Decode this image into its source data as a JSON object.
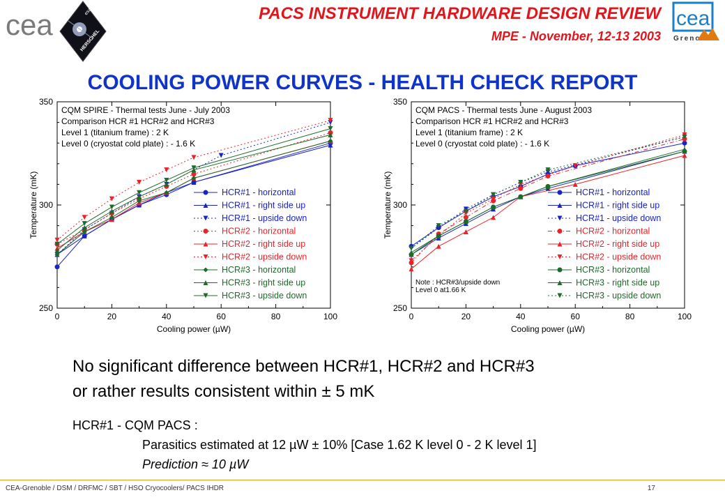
{
  "header": {
    "title": "PACS INSTRUMENT HARDWARE DESIGN REVIEW",
    "subtitle": "MPE - November, 12-13 2003",
    "logo_left_text": "cea",
    "herschel_text": "HERSCHEL",
    "esa_text": "esa",
    "logo_right_top": "cea",
    "logo_right_bottom": "Grenoble"
  },
  "page_title": "COOLING POWER CURVES - HEALTH CHECK REPORT",
  "conclusion": {
    "line1": "No significant difference between HCR#1, HCR#2 and HCR#3",
    "line2": "or rather results consistent within ± 5 mK"
  },
  "notes": {
    "heading": "HCR#1 - CQM PACS :",
    "parasitics": "Parasitics estimated at 12 µW ± 10% [Case 1.62 K level 0 - 2 K level 1]",
    "prediction": "Prediction ≈ 10 µW"
  },
  "footer": {
    "text": "CEA-Grenoble / DSM / DRFMC / SBT / HSO Cryocoolers/ PACS IHDR",
    "page": "17"
  },
  "colors": {
    "red_title": "#e0161d",
    "blue_title": "#1034c8",
    "hcr1": "#1a23c8",
    "hcr2": "#e8232a",
    "hcr3": "#1d6b2a"
  },
  "chart_data": [
    {
      "type": "line",
      "xlabel": "Cooling power (µW)",
      "ylabel": "Temperature (mK)",
      "xlim": [
        0,
        100
      ],
      "ylim": [
        250,
        350
      ],
      "xticks": [
        0,
        20,
        40,
        60,
        80,
        100
      ],
      "yticks": [
        250,
        300,
        350
      ],
      "annotation": [
        "CQM SPIRE - Thermal tests June - July 2003",
        "Comparison HCR #1 HCR#2 and HCR#3",
        "Level 1 (titanium frame) : 2 K",
        "Level 0 (cryostat cold plate) : - 1.6 K"
      ],
      "note": [],
      "legend_position": "bottom-right",
      "series": [
        {
          "name": "HCR#1 - horizontal",
          "color": "#1a23c8",
          "marker": "circle",
          "dash": "",
          "x": [
            0,
            10,
            20,
            30,
            40,
            50,
            100
          ],
          "y": [
            270,
            285,
            293,
            300,
            305,
            311,
            330
          ]
        },
        {
          "name": "HCR#1 - right side up",
          "color": "#1a23c8",
          "marker": "triangle-up",
          "dash": "",
          "x": [
            0,
            10,
            20,
            30,
            40,
            50,
            100
          ],
          "y": [
            276,
            285,
            293,
            300,
            306,
            311,
            329
          ]
        },
        {
          "name": "HCR#1 - upside down",
          "color": "#1a23c8",
          "marker": "triangle-down",
          "dash": "2,3",
          "x": [
            0,
            10,
            20,
            30,
            40,
            60,
            100
          ],
          "y": [
            276,
            288,
            296,
            304,
            310,
            324,
            340
          ]
        },
        {
          "name": "HCR#2 - horizontal",
          "color": "#e8232a",
          "marker": "circle",
          "dash": "2,3",
          "x": [
            0,
            10,
            20,
            30,
            40,
            50,
            100
          ],
          "y": [
            281,
            288,
            296,
            303,
            309,
            315,
            335
          ]
        },
        {
          "name": "HCR#2 - right side up",
          "color": "#e8232a",
          "marker": "triangle-up",
          "dash": "",
          "x": [
            0,
            10,
            20,
            30,
            40,
            50,
            100
          ],
          "y": [
            279,
            287,
            293,
            301,
            306,
            313,
            331
          ]
        },
        {
          "name": "HCR#2 - upside down",
          "color": "#e8232a",
          "marker": "triangle-down",
          "dash": "2,3",
          "x": [
            0,
            10,
            20,
            30,
            40,
            50,
            100
          ],
          "y": [
            283,
            294,
            303,
            311,
            317,
            323,
            341
          ]
        },
        {
          "name": "HCR#3 - horizontal",
          "color": "#1d6b2a",
          "marker": "diamond",
          "dash": "",
          "x": [
            0,
            10,
            20,
            30,
            40,
            50,
            100
          ],
          "y": [
            276,
            287,
            294,
            302,
            306,
            313,
            331
          ]
        },
        {
          "name": "HCR#3 - right side up",
          "color": "#1d6b2a",
          "marker": "triangle-up",
          "dash": "",
          "x": [
            0,
            10,
            20,
            30,
            40,
            50,
            100
          ],
          "y": [
            278,
            289,
            297,
            304,
            310,
            317,
            334
          ]
        },
        {
          "name": "HCR#3 - upside down",
          "color": "#1d6b2a",
          "marker": "triangle-down",
          "dash": "",
          "x": [
            0,
            10,
            20,
            30,
            40,
            50,
            100
          ],
          "y": [
            281,
            291,
            299,
            306,
            312,
            318,
            337
          ]
        }
      ]
    },
    {
      "type": "line",
      "xlabel": "Cooling power (µW)",
      "ylabel": "Temperature (mK)",
      "xlim": [
        0,
        100
      ],
      "ylim": [
        250,
        350
      ],
      "xticks": [
        0,
        20,
        40,
        60,
        80,
        100
      ],
      "yticks": [
        250,
        300,
        350
      ],
      "annotation": [
        "CQM PACS - Thermal tests June - August 2003",
        "Comparison HCR #1 HCR#2 and HCR#3",
        "Level 1 (titanium frame) : 2 K",
        "Level 0 (cryostat cold plate) : - 1.6 K"
      ],
      "note": [
        "Note : HCR#3/upside down",
        "Level 0 at1.66 K"
      ],
      "legend_position": "bottom-right",
      "series": [
        {
          "name": "HCR#1 - horizontal",
          "color": "#1a23c8",
          "marker": "circle",
          "dash": "",
          "x": [
            0,
            10,
            20,
            30,
            40,
            50,
            60,
            100
          ],
          "y": [
            280,
            289,
            297,
            304,
            309,
            315,
            319,
            330
          ]
        },
        {
          "name": "HCR#1 - right side up",
          "color": "#1a23c8",
          "marker": "triangle-up",
          "dash": "",
          "x": [
            0,
            10,
            20,
            30,
            40,
            50,
            100
          ],
          "y": [
            276,
            284,
            291,
            298,
            304,
            308,
            326
          ]
        },
        {
          "name": "HCR#1 - upside down",
          "color": "#1a23c8",
          "marker": "triangle-down",
          "dash": "2,3",
          "x": [
            0,
            10,
            20,
            30,
            40,
            50,
            100
          ],
          "y": [
            279,
            289,
            298,
            305,
            311,
            316,
            333
          ]
        },
        {
          "name": "HCR#2 - horizontal",
          "color": "#e8232a",
          "marker": "circle",
          "dash": "6,3,1,3",
          "x": [
            0,
            10,
            20,
            30,
            40,
            50,
            100
          ],
          "y": [
            272,
            286,
            294,
            302,
            308,
            314,
            332
          ]
        },
        {
          "name": "HCR#2 - right side up",
          "color": "#e8232a",
          "marker": "triangle-up",
          "dash": "",
          "x": [
            0,
            10,
            20,
            30,
            40,
            60,
            100
          ],
          "y": [
            269,
            280,
            287,
            294,
            304,
            310,
            324
          ]
        },
        {
          "name": "HCR#2 - upside down",
          "color": "#e8232a",
          "marker": "triangle-down",
          "dash": "2,3",
          "x": [
            0,
            10,
            20,
            30,
            40,
            60,
            100
          ],
          "y": [
            273,
            285,
            296,
            303,
            310,
            319,
            334
          ]
        },
        {
          "name": "HCR#3 - horizontal",
          "color": "#1d6b2a",
          "marker": "circle",
          "dash": "",
          "x": [
            0,
            10,
            20,
            30,
            40,
            50,
            100
          ],
          "y": [
            276,
            285,
            292,
            299,
            304,
            309,
            326
          ]
        },
        {
          "name": "HCR#3 - right side up",
          "color": "#1d6b2a",
          "marker": "triangle-up",
          "dash": "",
          "x": [
            0,
            10,
            20,
            30,
            40,
            50,
            100
          ],
          "y": [
            277,
            285,
            292,
            299,
            304,
            309,
            327
          ]
        },
        {
          "name": "HCR#3 - upside down",
          "color": "#1d6b2a",
          "marker": "triangle-down",
          "dash": "2,3",
          "x": [
            0,
            10,
            20,
            30,
            40,
            50,
            100
          ],
          "y": [
            279,
            290,
            297,
            305,
            311,
            317,
            333
          ]
        }
      ]
    }
  ]
}
